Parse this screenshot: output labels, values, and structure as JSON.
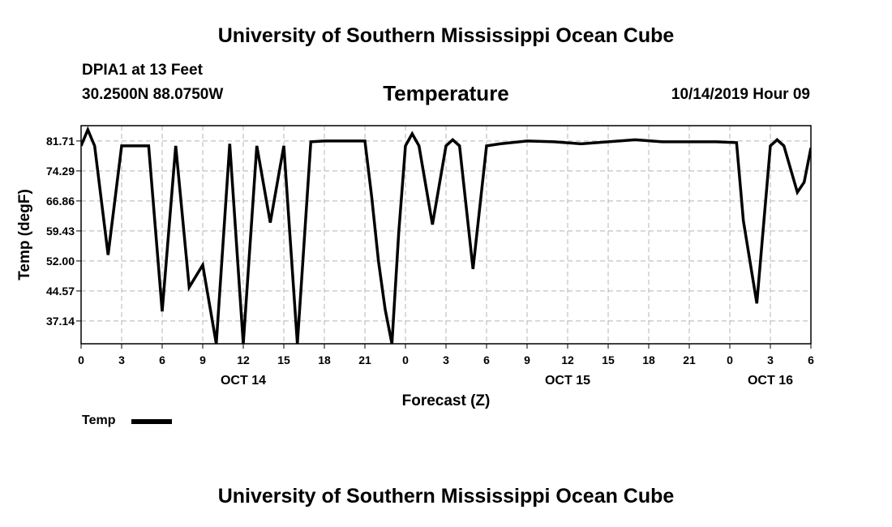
{
  "header": {
    "title": "University of Southern Mississippi Ocean Cube",
    "station": "DPIA1 at 13 Feet",
    "coordinates": "30.2500N 88.0750W",
    "chart_title": "Temperature",
    "datetime": "10/14/2019 Hour 09"
  },
  "footer": {
    "title": "University of Southern Mississippi Ocean Cube"
  },
  "legend": {
    "label": "Temp",
    "color": "#000000"
  },
  "chart_data": {
    "type": "line",
    "title": "Temperature",
    "xlabel": "Forecast (Z)",
    "ylabel": "Temp (degF)",
    "ylim": [
      31.5,
      85.5
    ],
    "xlim": [
      0,
      54
    ],
    "grid": true,
    "legend_position": "bottom-left",
    "y_ticks": [
      {
        "value": 37.14,
        "label": "37.14"
      },
      {
        "value": 44.57,
        "label": "44.57"
      },
      {
        "value": 52.0,
        "label": "52.00"
      },
      {
        "value": 59.43,
        "label": "59.43"
      },
      {
        "value": 66.86,
        "label": "66.86"
      },
      {
        "value": 74.29,
        "label": "74.29"
      },
      {
        "value": 81.71,
        "label": "81.71"
      }
    ],
    "x_ticks": [
      {
        "value": 0,
        "label": "0"
      },
      {
        "value": 3,
        "label": "3"
      },
      {
        "value": 6,
        "label": "6"
      },
      {
        "value": 9,
        "label": "9"
      },
      {
        "value": 12,
        "label": "12"
      },
      {
        "value": 15,
        "label": "15"
      },
      {
        "value": 18,
        "label": "18"
      },
      {
        "value": 21,
        "label": "21"
      },
      {
        "value": 24,
        "label": "0"
      },
      {
        "value": 27,
        "label": "3"
      },
      {
        "value": 30,
        "label": "6"
      },
      {
        "value": 33,
        "label": "9"
      },
      {
        "value": 36,
        "label": "12"
      },
      {
        "value": 39,
        "label": "15"
      },
      {
        "value": 42,
        "label": "18"
      },
      {
        "value": 45,
        "label": "21"
      },
      {
        "value": 48,
        "label": "0"
      },
      {
        "value": 51,
        "label": "3"
      },
      {
        "value": 54,
        "label": "6"
      }
    ],
    "date_labels": [
      {
        "value": 12,
        "label": "OCT 14"
      },
      {
        "value": 36,
        "label": "OCT 15"
      },
      {
        "value": 51,
        "label": "OCT 16"
      }
    ],
    "series": [
      {
        "name": "Temp",
        "color": "#000000",
        "x": [
          0,
          0.5,
          1,
          2,
          3,
          4,
          5,
          6,
          7,
          8,
          9,
          10,
          11,
          12,
          13,
          14,
          15,
          16,
          17,
          18,
          19,
          20,
          21,
          21.5,
          22,
          22.5,
          23,
          23.5,
          24,
          24.5,
          25,
          26,
          27,
          27.5,
          28,
          29,
          30,
          31,
          33,
          35,
          37,
          39,
          41,
          43,
          45,
          47,
          48.5,
          49,
          50,
          51,
          51.5,
          52,
          53,
          53.5,
          54
        ],
        "values": [
          80.5,
          84.5,
          80.5,
          53.5,
          80.5,
          80.5,
          80.5,
          39.5,
          80.5,
          45.5,
          51.0,
          31.5,
          81.0,
          31.5,
          80.5,
          61.5,
          80.5,
          31.5,
          81.5,
          81.7,
          81.7,
          81.7,
          81.7,
          68.0,
          52.0,
          40.0,
          31.5,
          59.0,
          80.5,
          83.5,
          80.5,
          61.0,
          80.5,
          82.0,
          80.5,
          50.0,
          80.5,
          81.0,
          81.7,
          81.5,
          81.0,
          81.5,
          82.0,
          81.5,
          81.5,
          81.5,
          81.3,
          62.0,
          41.5,
          80.5,
          82.0,
          80.5,
          69.0,
          71.5,
          80.0
        ]
      }
    ]
  }
}
